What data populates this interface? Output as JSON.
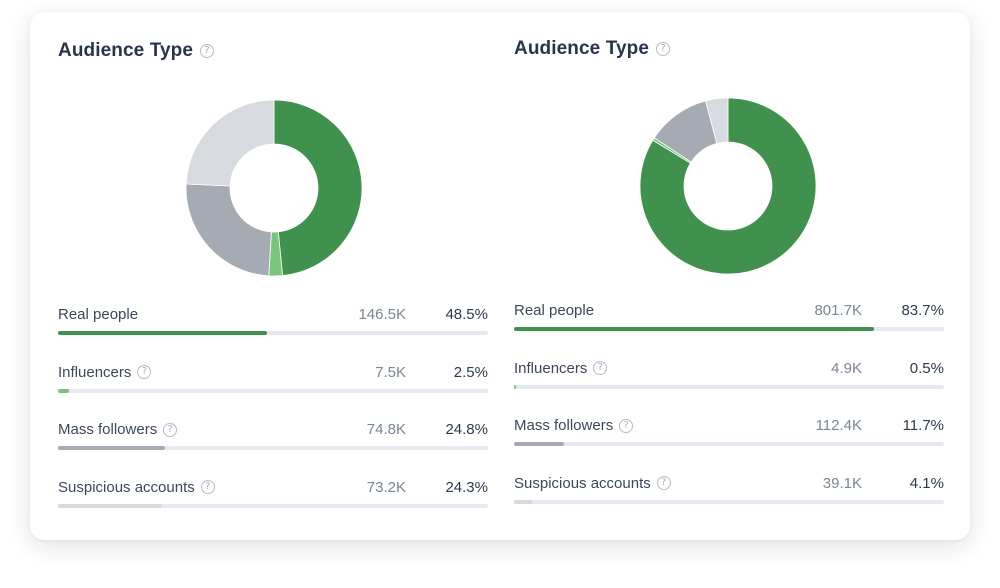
{
  "colors": {
    "real": "#3f914d",
    "influencers": "#79c57d",
    "mass": "#a5aab3",
    "suspicious": "#d7dadf"
  },
  "panels": [
    {
      "title": "Audience Type",
      "help_icon": "question-circle-icon",
      "rows": [
        {
          "label": "Real people",
          "count": "146.5K",
          "percent": "48.5%",
          "has_help": false
        },
        {
          "label": "Influencers",
          "count": "7.5K",
          "percent": "2.5%",
          "has_help": true
        },
        {
          "label": "Mass followers",
          "count": "74.8K",
          "percent": "24.8%",
          "has_help": true
        },
        {
          "label": "Suspicious accounts",
          "count": "73.2K",
          "percent": "24.3%",
          "has_help": true
        }
      ]
    },
    {
      "title": "Audience Type",
      "help_icon": "question-circle-icon",
      "rows": [
        {
          "label": "Real people",
          "count": "801.7K",
          "percent": "83.7%",
          "has_help": false
        },
        {
          "label": "Influencers",
          "count": "4.9K",
          "percent": "0.5%",
          "has_help": true
        },
        {
          "label": "Mass followers",
          "count": "112.4K",
          "percent": "11.7%",
          "has_help": true
        },
        {
          "label": "Suspicious accounts",
          "count": "39.1K",
          "percent": "4.1%",
          "has_help": true
        }
      ]
    }
  ],
  "chart_data": [
    {
      "type": "pie",
      "title": "Audience Type",
      "categories": [
        "Real people",
        "Influencers",
        "Mass followers",
        "Suspicious accounts"
      ],
      "values": [
        48.5,
        2.5,
        24.8,
        24.3
      ],
      "counts": [
        "146.5K",
        "7.5K",
        "74.8K",
        "73.2K"
      ]
    },
    {
      "type": "pie",
      "title": "Audience Type",
      "categories": [
        "Real people",
        "Influencers",
        "Mass followers",
        "Suspicious accounts"
      ],
      "values": [
        83.7,
        0.5,
        11.7,
        4.1
      ],
      "counts": [
        "801.7K",
        "4.9K",
        "112.4K",
        "39.1K"
      ]
    }
  ]
}
